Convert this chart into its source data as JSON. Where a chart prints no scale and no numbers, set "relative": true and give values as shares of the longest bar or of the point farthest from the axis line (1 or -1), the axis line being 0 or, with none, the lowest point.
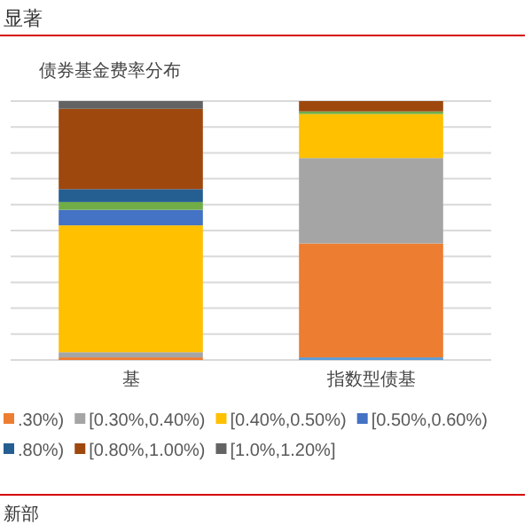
{
  "chart_data": {
    "type": "bar",
    "title": "债券基金费率分布",
    "stacked": true,
    "relative": true,
    "grid": "y",
    "legend": "bottom",
    "categories": [
      "基",
      "指数型债基"
    ],
    "series": [
      {
        "color": "#5b9bd5",
        "values": [
          0,
          0.01
        ]
      },
      {
        "name": ".30%)",
        "color": "#ed7d31",
        "values": [
          0.01,
          0.44
        ]
      },
      {
        "name": "[0.30%,0.40%)",
        "color": "#a5a5a5",
        "values": [
          0.02,
          0.33
        ]
      },
      {
        "name": "[0.40%,0.50%)",
        "color": "#ffc000",
        "values": [
          0.49,
          0.17
        ]
      },
      {
        "name": "[0.50%,0.60%)",
        "color": "#4472c4",
        "values": [
          0.06,
          0
        ]
      },
      {
        "color": "#70ad47",
        "values": [
          0.03,
          0.01
        ]
      },
      {
        "name": ".80%)",
        "color": "#255e91",
        "values": [
          0.05,
          0
        ]
      },
      {
        "name": "[0.80%,1.00%)",
        "color": "#9e480e",
        "values": [
          0.31,
          0.04
        ]
      },
      {
        "name": "[1.0%,1.20%]",
        "color": "#636363",
        "values": [
          0.03,
          0
        ]
      }
    ],
    "annotations": [
      "显著",
      "新部"
    ]
  }
}
